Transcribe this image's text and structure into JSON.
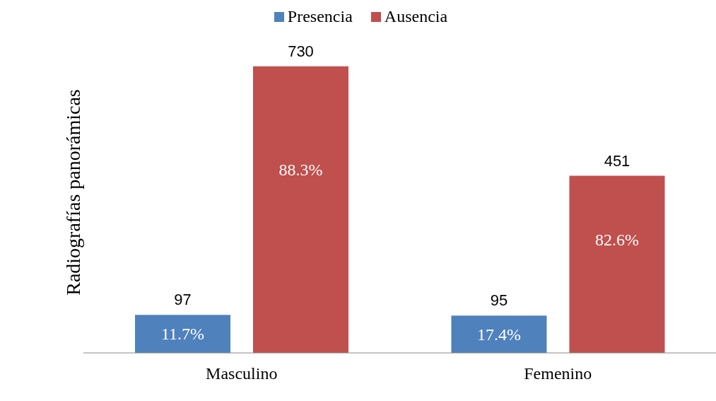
{
  "chart_data": {
    "type": "bar",
    "ylabel": "Radiografías  panorámicas",
    "categories": [
      "Masculino",
      "Femenino"
    ],
    "series": [
      {
        "name": "Presencia",
        "color": "#4f81bd",
        "values": [
          97,
          95
        ]
      },
      {
        "name": "Ausencia",
        "color": "#c0504d",
        "values": [
          730,
          451
        ]
      }
    ],
    "annotations": [
      "11.7%",
      "17.4%",
      "88.3%",
      "82.6%"
    ],
    "data_labels": true,
    "legend": "top",
    "grid": false
  }
}
